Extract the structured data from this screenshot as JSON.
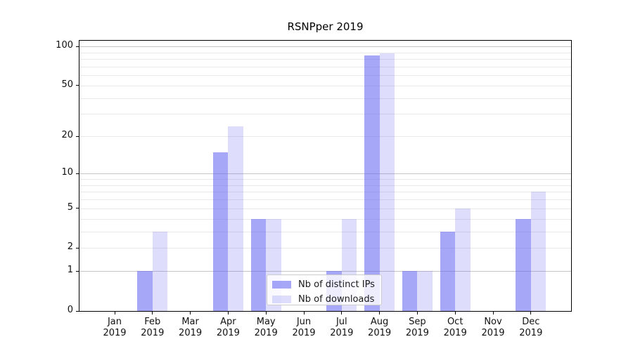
{
  "figure": {
    "background": "#ffffff"
  },
  "chart_data": {
    "type": "bar",
    "title": "RSNPper 2019",
    "categories": [
      "Jan 2019",
      "Feb 2019",
      "Mar 2019",
      "Apr 2019",
      "May 2019",
      "Jun 2019",
      "Jul 2019",
      "Aug 2019",
      "Sep 2019",
      "Oct 2019",
      "Nov 2019",
      "Dec 2019"
    ],
    "series": [
      {
        "name": "Nb of distinct IPs",
        "fill": "rgba(98,98,242,0.56)",
        "apparent_color": "#a8a8f7",
        "values": [
          0,
          1,
          0,
          15,
          4,
          0,
          1,
          85,
          1,
          3,
          0,
          4
        ]
      },
      {
        "name": "Nb of downloads",
        "fill": "rgba(98,98,242,0.21)",
        "apparent_color": "#dcdcf9",
        "values": [
          0,
          3,
          0,
          24,
          4,
          0,
          4,
          88,
          1,
          5,
          0,
          7
        ]
      }
    ],
    "xlabel": "",
    "ylabel": "",
    "yaxis": {
      "scale": "log1p",
      "range": [
        0,
        110
      ],
      "tick_values": [
        0,
        1,
        2,
        5,
        10,
        20,
        50,
        100
      ],
      "major_grid_values": [
        1,
        10,
        100
      ],
      "minor_grid_values": [
        2,
        3,
        4,
        5,
        6,
        7,
        8,
        9,
        20,
        30,
        40,
        50,
        60,
        70,
        80,
        90
      ]
    },
    "grid": true,
    "legend": {
      "position": "lower center"
    },
    "colors": {
      "major_grid": "#c6c6c6",
      "minor_grid": "#e9e9e9",
      "spine": "#000000",
      "text": "#1a1a1a"
    }
  }
}
